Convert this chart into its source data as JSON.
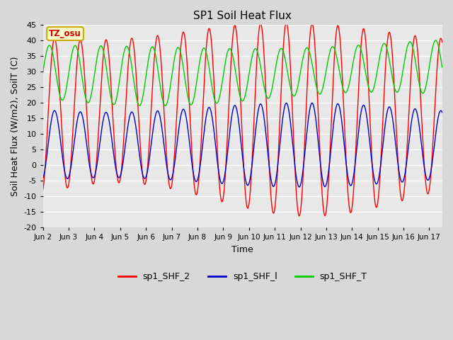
{
  "title": "SP1 Soil Heat Flux",
  "xlabel": "Time",
  "ylabel": "Soil Heat Flux (W/m2), SoilT (C)",
  "ylim": [
    -20,
    45
  ],
  "yticks": [
    -20,
    -15,
    -10,
    -5,
    0,
    5,
    10,
    15,
    20,
    25,
    30,
    35,
    40,
    45
  ],
  "tz_label": "TZ_osu",
  "legend_labels": [
    "sp1_SHF_2",
    "sp1_SHF_l",
    "sp1_SHF_T"
  ],
  "line_colors": [
    "#ff0000",
    "#0000cc",
    "#00cc00"
  ],
  "fig_bg_color": "#d8d8d8",
  "plot_bg_color": "#e8e8e8",
  "grid_color": "#ffffff",
  "tz_box_bg": "#ffffcc",
  "tz_box_edge": "#ccaa00",
  "tz_text_color": "#cc0000",
  "x_tick_labels": [
    "Jun 2",
    "Jun 3",
    "Jun 4",
    "Jun 5",
    "Jun 6",
    "Jun 7",
    "Jun 8",
    "Jun 9",
    "Jun 10",
    "Jun 11",
    "Jun 12",
    "Jun 13",
    "Jun 14",
    "Jun 15",
    "Jun 16",
    "Jun 17"
  ],
  "num_days": 15.5
}
